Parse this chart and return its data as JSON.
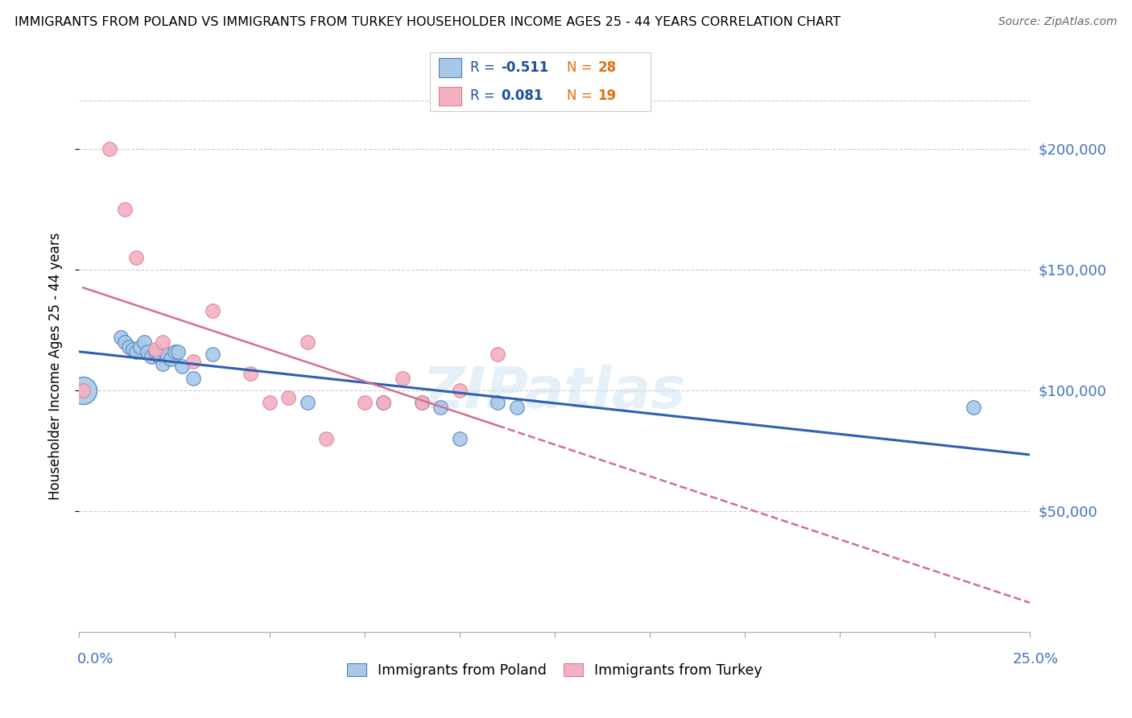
{
  "title": "IMMIGRANTS FROM POLAND VS IMMIGRANTS FROM TURKEY HOUSEHOLDER INCOME AGES 25 - 44 YEARS CORRELATION CHART",
  "source": "Source: ZipAtlas.com",
  "ylabel": "Householder Income Ages 25 - 44 years",
  "xlim": [
    0.0,
    0.25
  ],
  "ylim": [
    0,
    220000
  ],
  "poland_R": -0.511,
  "poland_N": 28,
  "turkey_R": 0.081,
  "turkey_N": 19,
  "poland_color": "#a8c8e8",
  "poland_edge_color": "#5080c0",
  "turkey_color": "#f4b0c0",
  "turkey_edge_color": "#d88090",
  "poland_line_color": "#3060b0",
  "turkey_line_color": "#d07090",
  "ytick_values": [
    50000,
    100000,
    150000,
    200000
  ],
  "ytick_labels": [
    "$50,000",
    "$100,000",
    "$150,000",
    "$200,000"
  ],
  "ytick_color": "#4472c4",
  "xtick_label_left": "0.0%",
  "xtick_label_right": "25.0%",
  "legend_R_color": "#1a4fa0",
  "legend_N_color": "#e07010",
  "watermark": "ZIPatlas",
  "poland_x": [
    0.001,
    0.011,
    0.012,
    0.013,
    0.014,
    0.015,
    0.016,
    0.017,
    0.018,
    0.019,
    0.02,
    0.021,
    0.022,
    0.023,
    0.024,
    0.025,
    0.026,
    0.027,
    0.03,
    0.035,
    0.06,
    0.08,
    0.09,
    0.095,
    0.1,
    0.11,
    0.115,
    0.235
  ],
  "poland_y": [
    100000,
    122000,
    120000,
    118000,
    117000,
    116000,
    118000,
    120000,
    116000,
    114000,
    116000,
    114000,
    111000,
    115000,
    113000,
    116000,
    116000,
    110000,
    105000,
    115000,
    95000,
    95000,
    95000,
    93000,
    80000,
    95000,
    93000,
    93000
  ],
  "turkey_x": [
    0.001,
    0.008,
    0.012,
    0.015,
    0.02,
    0.022,
    0.03,
    0.035,
    0.045,
    0.05,
    0.055,
    0.06,
    0.065,
    0.075,
    0.08,
    0.085,
    0.09,
    0.1,
    0.11
  ],
  "turkey_y": [
    100000,
    200000,
    175000,
    155000,
    117000,
    120000,
    112000,
    133000,
    107000,
    95000,
    97000,
    120000,
    80000,
    95000,
    95000,
    105000,
    95000,
    100000,
    115000
  ],
  "poland_large_x": [
    0.001
  ],
  "poland_large_y": [
    100000
  ]
}
